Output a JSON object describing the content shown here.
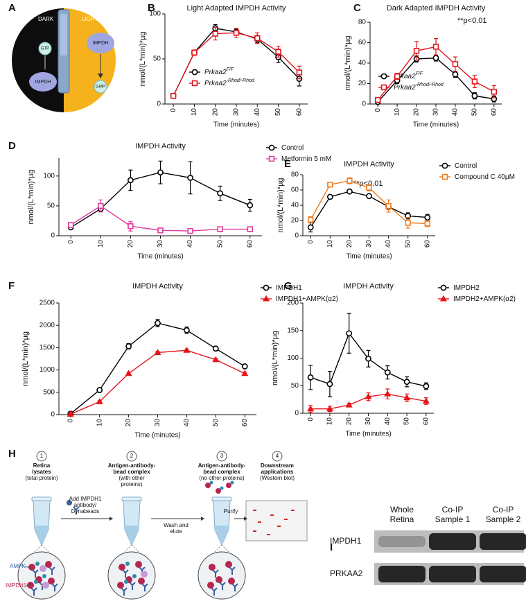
{
  "panel_a": {
    "label": "A",
    "dark": "DARK",
    "light": "LIGHT",
    "gtp": "GTP",
    "impdh_dark": "IMPDH",
    "impdh_light": "IMPDH",
    "gmp": "GMP"
  },
  "chart_data": [
    {
      "type": "line",
      "panel": "B",
      "title": "Light Adapted IMPDH Activity",
      "x_label": "Time (minutes)",
      "y_label": "nmol/(L*min)*µg",
      "x": [
        0,
        10,
        20,
        30,
        40,
        50,
        60
      ],
      "xlim": [
        -4,
        64
      ],
      "xticks": [
        0,
        10,
        20,
        30,
        40,
        50,
        60
      ],
      "ylim": [
        0,
        100
      ],
      "yticks": [
        0,
        50,
        100
      ],
      "legend_position": "lower center",
      "series": [
        {
          "name": "Prkaa2",
          "name_superscript": "F/F",
          "color": "#000000",
          "marker": "circle",
          "values": [
            9,
            57,
            84,
            80,
            72,
            52,
            28
          ],
          "errors": [
            2,
            2,
            4,
            3,
            4,
            6,
            8
          ]
        },
        {
          "name": "Prkaa2",
          "name_superscript": "-Rhod/-Rhod",
          "color": "#e3151b",
          "marker": "square",
          "values": [
            9,
            57,
            78,
            79,
            73,
            58,
            35
          ],
          "errors": [
            2,
            3,
            7,
            5,
            6,
            6,
            7
          ]
        }
      ]
    },
    {
      "type": "line",
      "panel": "C",
      "title": "Dark Adapted IMPDH Activity",
      "x_label": "Time (minutes)",
      "y_label": "nmol/(L*min)*µg",
      "annotation": "**p<0.01",
      "x": [
        0,
        10,
        20,
        30,
        40,
        50,
        60
      ],
      "xlim": [
        -4,
        64
      ],
      "xticks": [
        0,
        10,
        20,
        30,
        40,
        50,
        60
      ],
      "ylim": [
        0,
        80
      ],
      "yticks": [
        0,
        20,
        40,
        60,
        80
      ],
      "legend_position": "lower left",
      "series": [
        {
          "name": "Prkaa2",
          "name_superscript": "F/F",
          "color": "#000000",
          "marker": "circle",
          "values": [
            2,
            23,
            44,
            45,
            29,
            8,
            5
          ],
          "errors": [
            1,
            3,
            3,
            3,
            3,
            3,
            3
          ]
        },
        {
          "name": "Prkaa2",
          "name_superscript": "-Rhod/-Rhod",
          "color": "#e3151b",
          "marker": "square",
          "values": [
            4,
            27,
            52,
            56,
            39,
            22,
            12
          ],
          "errors": [
            1,
            3,
            9,
            8,
            7,
            6,
            6
          ]
        }
      ]
    },
    {
      "type": "line",
      "panel": "D",
      "title": "IMPDH Activity",
      "x_label": "Time (minutes)",
      "y_label": "nmol/(L*min)*µg",
      "x": [
        0,
        10,
        20,
        30,
        40,
        50,
        60
      ],
      "xlim": [
        -4,
        64
      ],
      "xticks": [
        0,
        10,
        20,
        30,
        40,
        50,
        60
      ],
      "ylim": [
        0,
        130
      ],
      "yticks": [
        0,
        50,
        100
      ],
      "legend_position": "right",
      "series": [
        {
          "name": "Control",
          "color": "#000000",
          "marker": "circle",
          "values": [
            14,
            45,
            93,
            106,
            97,
            71,
            51
          ],
          "errors": [
            3,
            5,
            17,
            19,
            27,
            12,
            10
          ]
        },
        {
          "name": "Metformin 5 mM",
          "color": "#e0389b",
          "marker": "square",
          "values": [
            18,
            50,
            16,
            9,
            8,
            11,
            11
          ],
          "errors": [
            4,
            10,
            8,
            2,
            2,
            4,
            4
          ]
        }
      ]
    },
    {
      "type": "line",
      "panel": "E",
      "title": "IMPDH Activity",
      "x_label": "Time (minutes)",
      "y_label": "nmol/(L*min)*µg",
      "annotation": "**p<0.01",
      "x": [
        0,
        10,
        20,
        30,
        40,
        50,
        60
      ],
      "xlim": [
        -4,
        64
      ],
      "xticks": [
        0,
        10,
        20,
        30,
        40,
        50,
        60
      ],
      "ylim": [
        0,
        80
      ],
      "yticks": [
        0,
        20,
        40,
        60,
        80
      ],
      "legend_position": "right",
      "series": [
        {
          "name": "Control",
          "color": "#000000",
          "marker": "circle",
          "values": [
            11,
            51,
            58,
            52,
            38,
            26,
            24
          ],
          "errors": [
            6,
            1,
            2,
            2,
            3,
            4,
            4
          ]
        },
        {
          "name": "Compound C 40μM",
          "color": "#f07b1c",
          "marker": "square",
          "values": [
            21,
            67,
            72,
            63,
            39,
            17,
            16
          ],
          "errors": [
            4,
            1,
            4,
            4,
            8,
            7,
            4
          ]
        }
      ]
    },
    {
      "type": "line",
      "panel": "F",
      "title": "IMPDH Activity",
      "x_label": "Time (minutes)",
      "y_label": "nmol/(L*min)*µg",
      "x": [
        0,
        10,
        20,
        30,
        40,
        50,
        60
      ],
      "xlim": [
        -4,
        64
      ],
      "xticks": [
        0,
        10,
        20,
        30,
        40,
        50,
        60
      ],
      "ylim": [
        0,
        2500
      ],
      "yticks": [
        0,
        500,
        1000,
        1500,
        2000,
        2500
      ],
      "legend_position": "right",
      "series": [
        {
          "name": "IMPDH1",
          "color": "#000000",
          "marker": "circle",
          "values": [
            20,
            550,
            1530,
            2050,
            1890,
            1480,
            1080
          ],
          "errors": [
            10,
            30,
            60,
            80,
            70,
            50,
            30
          ]
        },
        {
          "name": "IMPDH1+AMPK(α2)",
          "color": "#e8141b",
          "marker": "triangle",
          "values": [
            10,
            290,
            920,
            1390,
            1440,
            1230,
            920
          ],
          "errors": [
            5,
            20,
            30,
            30,
            30,
            30,
            30
          ]
        }
      ]
    },
    {
      "type": "line",
      "panel": "G",
      "title": "IMPDH Activity",
      "x_label": "Time (minutes)",
      "y_label": "nmol/(L*min)*µg",
      "x": [
        0,
        10,
        20,
        30,
        40,
        50,
        60
      ],
      "xlim": [
        -4,
        64
      ],
      "xticks": [
        0,
        10,
        20,
        30,
        40,
        50,
        60
      ],
      "ylim": [
        0,
        200
      ],
      "yticks": [
        0,
        50,
        100,
        150,
        200
      ],
      "legend_position": "right",
      "series": [
        {
          "name": "IMPDH2",
          "color": "#000000",
          "marker": "circle",
          "values": [
            65,
            53,
            145,
            99,
            74,
            57,
            49
          ],
          "errors": [
            22,
            23,
            36,
            15,
            12,
            9,
            6
          ]
        },
        {
          "name": "IMPDH2+AMPK(α2)",
          "color": "#e8141b",
          "marker": "triangle",
          "values": [
            8,
            8,
            15,
            30,
            35,
            28,
            22
          ],
          "errors": [
            6,
            5,
            3,
            7,
            9,
            7,
            6
          ]
        }
      ]
    }
  ],
  "panel_h": {
    "label": "H",
    "steps": [
      {
        "number": 1,
        "title": [
          "Retina",
          "lysates"
        ],
        "note": [
          "(total protein)"
        ]
      },
      {
        "number": 2,
        "title": [
          "Antigen-antibody-",
          "bead complex"
        ],
        "note": [
          "(with other",
          "proteins)"
        ]
      },
      {
        "number": 3,
        "title": [
          "Antigen-antibody-",
          "bead complex"
        ],
        "note": [
          "(no other proteins)"
        ]
      },
      {
        "number": 4,
        "title": [
          "Downstream",
          "applications"
        ],
        "note": [
          "(Western blot)"
        ]
      }
    ],
    "arrows": [
      [
        "Add IMPDH1",
        "antibody/",
        "Dynabeads"
      ],
      [
        "Wash and",
        "elute"
      ],
      [
        "Purify"
      ]
    ],
    "ampk": "AMPK",
    "impdh1": "IMPDH1"
  },
  "panel_i": {
    "label": "I",
    "columns": [
      [
        "Whole",
        "Retina"
      ],
      [
        "Co-IP",
        "Sample 1"
      ],
      [
        "Co-IP",
        "Sample 2"
      ]
    ],
    "rows": [
      "IMPDH1",
      "PRKAA2"
    ]
  }
}
